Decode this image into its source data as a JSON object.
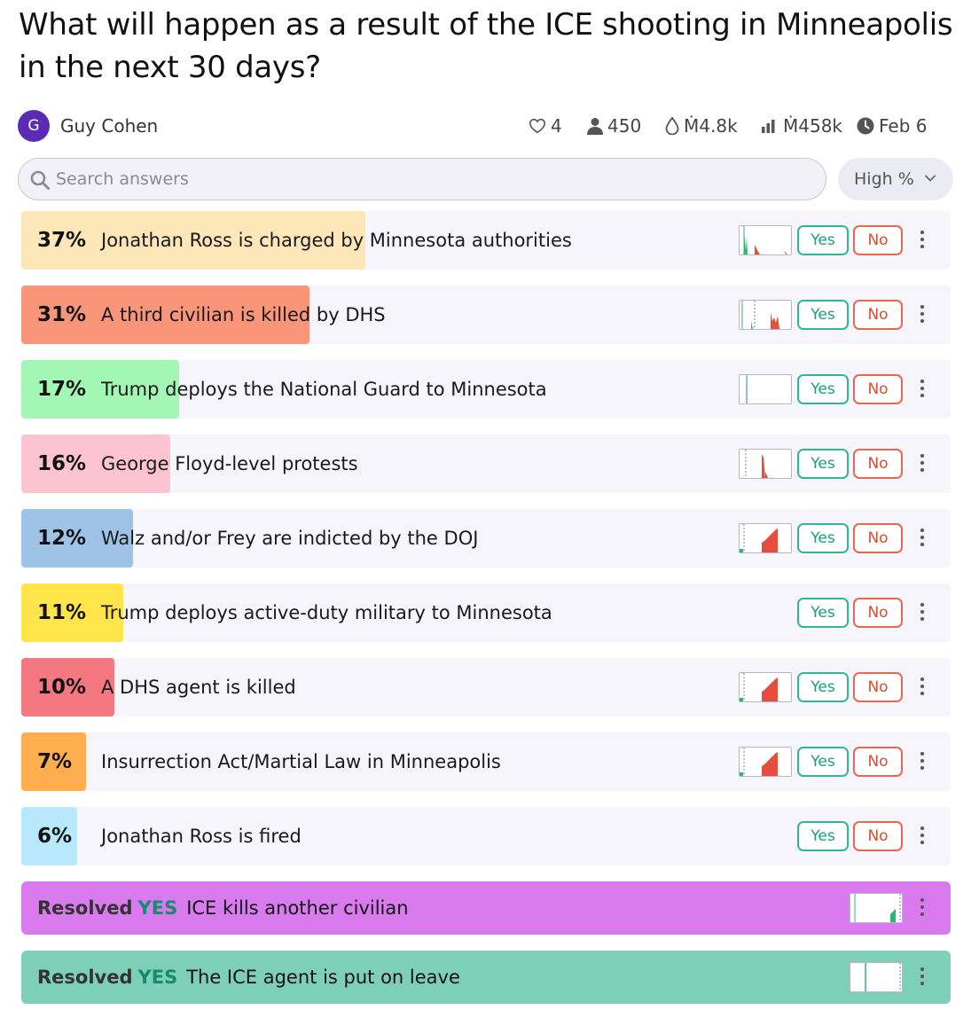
{
  "title": "What will happen as a result of the ICE shooting in Minneapolis in the next 30 days?",
  "author": {
    "initial": "G",
    "name": "Guy Cohen",
    "avatar_color": "#5b2bb8"
  },
  "stats": {
    "likes": "4",
    "traders": "450",
    "liquidity": "Ṁ4.8k",
    "volume": "Ṁ458k",
    "close_date": "Feb 6"
  },
  "search": {
    "placeholder": "Search answers",
    "value": ""
  },
  "sort": {
    "label": "High %"
  },
  "buttons": {
    "yes": "Yes",
    "no": "No"
  },
  "answers": [
    {
      "pct": "37%",
      "prob": 0.37,
      "label": "Jonathan Ross is charged by Minnesota authorities",
      "color": "#fde6b8",
      "spark": "spiky"
    },
    {
      "pct": "31%",
      "prob": 0.31,
      "label": "A third civilian is killed by DHS",
      "color": "#f9967a",
      "spark": "mixed"
    },
    {
      "pct": "17%",
      "prob": 0.17,
      "label": "Trump deploys the National Guard to Minnesota",
      "color": "#a3f7b5",
      "spark": "flat"
    },
    {
      "pct": "16%",
      "prob": 0.16,
      "label": "George Floyd-level protests",
      "color": "#fcc4d0",
      "spark": "spike-mid"
    },
    {
      "pct": "12%",
      "prob": 0.12,
      "label": "Walz and/or Frey are indicted by the DOJ",
      "color": "#9fc3e7",
      "spark": "ramp"
    },
    {
      "pct": "11%",
      "prob": 0.11,
      "label": "Trump deploys active-duty military to Minnesota",
      "color": "#ffe44a",
      "spark": "none"
    },
    {
      "pct": "10%",
      "prob": 0.1,
      "label": "A DHS agent is killed",
      "color": "#f47880",
      "spark": "ramp"
    },
    {
      "pct": "7%",
      "prob": 0.07,
      "label": "Insurrection Act/Martial Law in Minneapolis",
      "color": "#ffae4f",
      "spark": "ramp"
    },
    {
      "pct": "6%",
      "prob": 0.06,
      "label": "Jonathan Ross is fired",
      "color": "#b8e8fb",
      "spark": "none"
    }
  ],
  "resolved": [
    {
      "word": "Resolved",
      "outcome": "YES",
      "label": "ICE kills another civilian",
      "color": "#d97aef",
      "spark": "tail"
    },
    {
      "word": "Resolved",
      "outcome": "YES",
      "label": "The ICE agent is put on leave",
      "color": "#7ecfb8",
      "spark": "line"
    }
  ]
}
